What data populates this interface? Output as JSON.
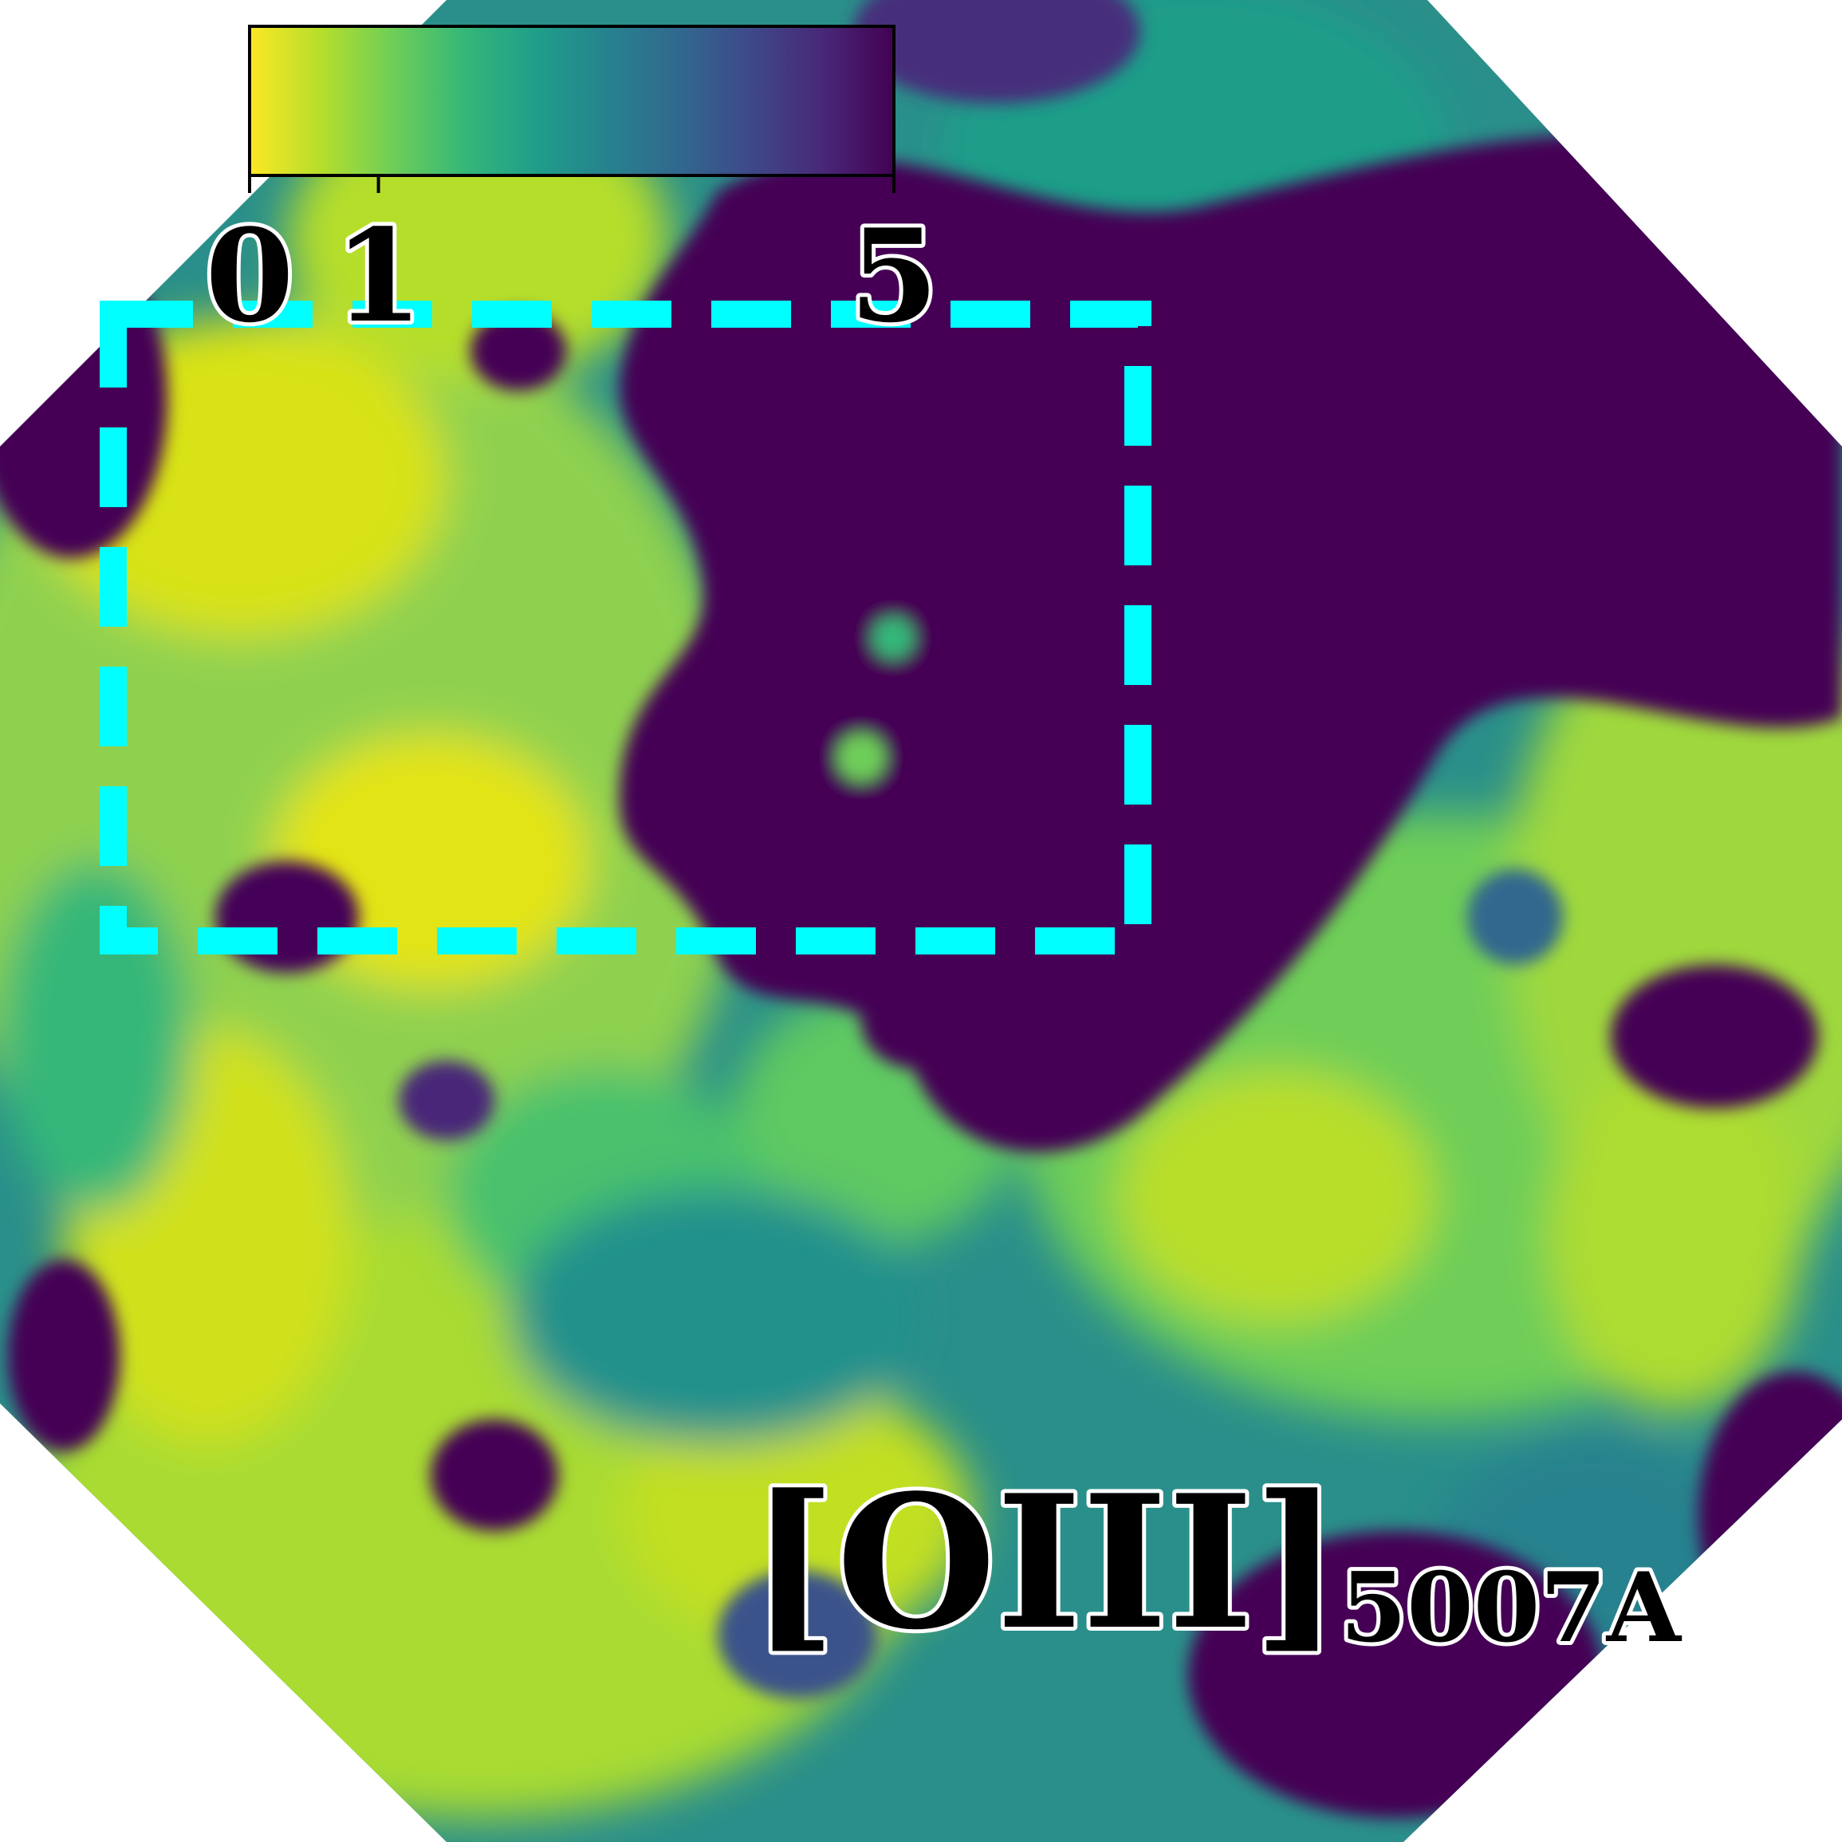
{
  "colorbar": {
    "tick_labels": [
      "0",
      "1",
      "5"
    ],
    "tick_values": [
      0,
      1,
      5
    ],
    "range": [
      0,
      5
    ],
    "colormap": "viridis-reversed",
    "stops": [
      "#fde725",
      "#b5de2b",
      "#6ece58",
      "#35b779",
      "#1f9e89",
      "#26828e",
      "#31688e",
      "#3e4989",
      "#482878",
      "#440154"
    ]
  },
  "line_label": {
    "main": "[OIII]",
    "sub": "5007A"
  },
  "region_box": {
    "color": "#00ffff",
    "style": "dashed"
  },
  "map_colors": {
    "low": "#fde725",
    "mid": "#35b779",
    "high": "#440154"
  }
}
